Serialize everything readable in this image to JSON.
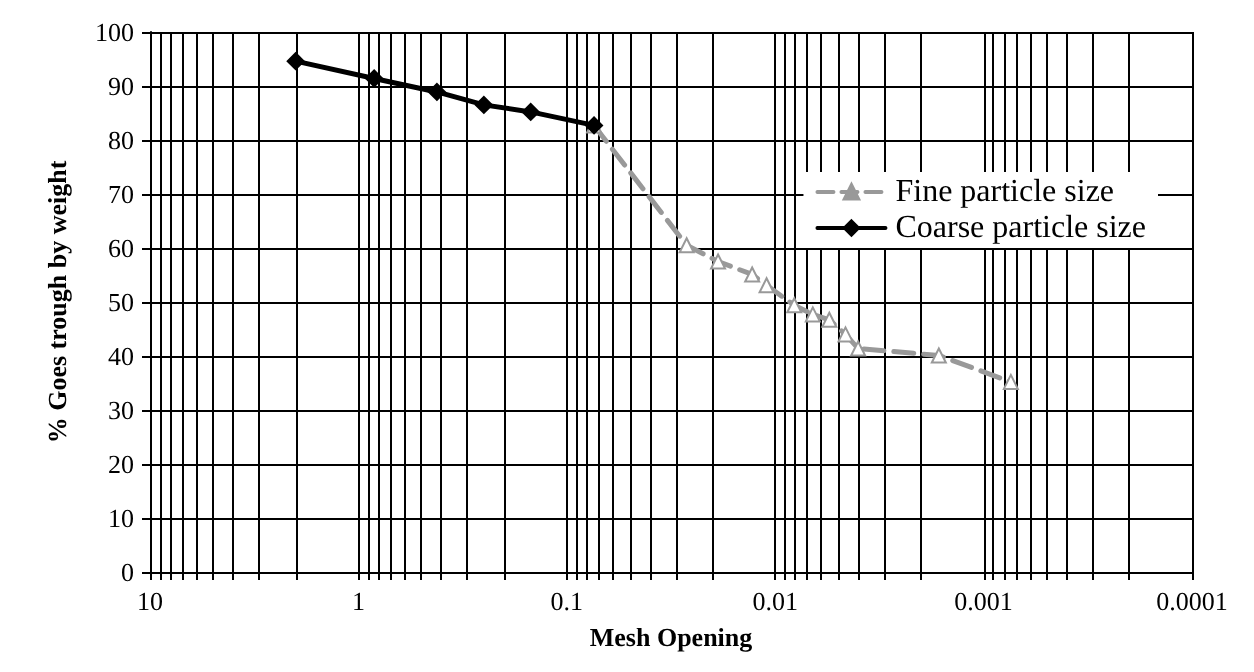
{
  "chart_data": {
    "type": "line",
    "xlabel": "Mesh Opening",
    "ylabel": "% Goes trough by weight",
    "log": "x",
    "xlim": [
      10,
      0.0001
    ],
    "xticks": [
      10,
      1,
      0.1,
      0.01,
      0.001,
      0.0001
    ],
    "ylim": [
      0,
      100
    ],
    "yticks": [
      0,
      10,
      20,
      30,
      40,
      50,
      60,
      70,
      80,
      90,
      100
    ],
    "grid": true,
    "legend": "right",
    "series": [
      {
        "name": "Fine particle size",
        "color": "#999999",
        "marker": "triangle",
        "line_style": "dashed",
        "x": [
          0.074,
          0.0266,
          0.0188,
          0.0129,
          0.011,
          0.0081,
          0.0066,
          0.0055,
          0.0046,
          0.004,
          0.00164,
          0.00074
        ],
        "values": [
          82.7,
          60.5,
          57.5,
          55.1,
          53.1,
          49.4,
          47.7,
          46.7,
          44.0,
          41.4,
          40.1,
          35.2
        ]
      },
      {
        "name": "Coarse particle size",
        "color": "#000000",
        "marker": "diamond",
        "line_style": "solid",
        "x": [
          2.0,
          0.84,
          0.42,
          0.25,
          0.149,
          0.074
        ],
        "values": [
          94.6,
          91.4,
          88.9,
          86.5,
          85.2,
          82.7
        ]
      }
    ]
  }
}
